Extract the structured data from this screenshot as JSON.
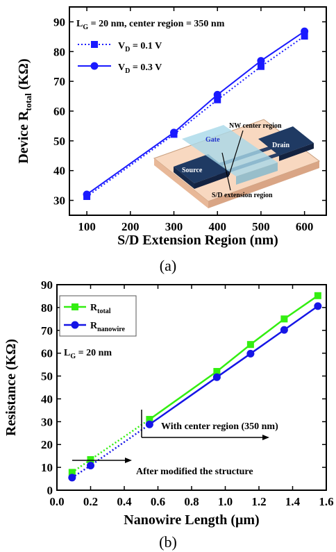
{
  "chart_data": [
    {
      "type": "line",
      "panel_label": "(a)",
      "xlabel": "S/D Extension Region (nm)",
      "ylabel_main": "Device R",
      "ylabel_sub": "total",
      "ylabel_unit": " (KΩ)",
      "xlim": [
        60,
        650
      ],
      "ylim": [
        25,
        95
      ],
      "xticks": [
        100,
        200,
        300,
        400,
        500,
        600
      ],
      "yticks": [
        30,
        40,
        50,
        60,
        70,
        80,
        90
      ],
      "annotation": {
        "main": "L",
        "sub": "G",
        "rest": " = 20 nm, center region = 350 nm"
      },
      "x": [
        100,
        300,
        400,
        500,
        600
      ],
      "series": [
        {
          "name_main": "V",
          "name_sub": "D",
          "name_rest": " = 0.1 V",
          "color": "#1a1aff",
          "marker": "square",
          "dash": "dotted",
          "values": [
            31.3,
            52.2,
            63.8,
            75.0,
            85.2
          ]
        },
        {
          "name_main": "V",
          "name_sub": "D",
          "name_rest": " = 0.3 V",
          "color": "#1a1aff",
          "marker": "circle",
          "dash": "solid",
          "values": [
            32.0,
            52.8,
            65.5,
            76.9,
            86.8
          ]
        }
      ],
      "inset_labels": {
        "gate": "Gate",
        "drain": "Drain",
        "source": "Source",
        "nw_center": "NW center region",
        "sd_ext": "S/D extension region"
      }
    },
    {
      "type": "line",
      "panel_label": "(b)",
      "xlabel": "Nanowire Length (μm)",
      "ylabel": "Resistance (KΩ)",
      "xlim": [
        0.0,
        1.6
      ],
      "ylim": [
        0,
        90
      ],
      "xticks": [
        "0.0",
        "0.2",
        "0.4",
        "0.6",
        "0.8",
        "1.0",
        "1.2",
        "1.4",
        "1.6"
      ],
      "yticks": [
        0,
        10,
        20,
        30,
        40,
        50,
        60,
        70,
        80,
        90
      ],
      "annotation": {
        "main": "L",
        "sub": "G",
        "rest": " = 20 nm"
      },
      "x": [
        0.09,
        0.2,
        0.55,
        0.95,
        1.15,
        1.35,
        1.55
      ],
      "series": [
        {
          "name_main": "R",
          "name_sub": "total",
          "color": "#33ee11",
          "marker": "square",
          "values": [
            7.8,
            13.4,
            31.0,
            52.0,
            63.8,
            75.0,
            85.2
          ]
        },
        {
          "name_main": "R",
          "name_sub": "nanowire",
          "color": "#1515e6",
          "marker": "circle",
          "values": [
            5.5,
            10.8,
            28.8,
            49.5,
            59.8,
            70.2,
            80.6
          ]
        }
      ],
      "text_with_center": "With center region (350 nm)",
      "text_after_modified": "After modified the structure"
    }
  ]
}
